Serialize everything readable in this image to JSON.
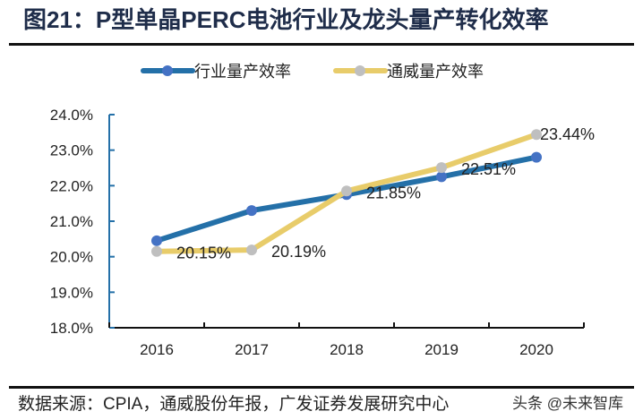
{
  "title": "图21：P型单晶PERC电池行业及龙头量产转化效率",
  "source": "数据来源：CPIA，通威股份年报，广发证券发展研究中心",
  "watermark": "头条 @未来智库",
  "chart_data": {
    "type": "line",
    "categories": [
      "2016",
      "2017",
      "2018",
      "2019",
      "2020"
    ],
    "ylim": [
      18,
      24
    ],
    "yticks": [
      "18.0%",
      "19.0%",
      "20.0%",
      "21.0%",
      "22.0%",
      "23.0%",
      "24.0%"
    ],
    "legend_position": "top",
    "grid": false,
    "series": [
      {
        "name": "行业量产效率",
        "values": [
          20.45,
          21.3,
          21.75,
          22.25,
          22.8
        ],
        "labels": [],
        "line_color": "#2470a8",
        "marker_color": "#4472c4"
      },
      {
        "name": "通威量产效率",
        "values": [
          20.15,
          20.19,
          21.85,
          22.51,
          23.44
        ],
        "labels": [
          "20.15%",
          "20.19%",
          "21.85%",
          "22.51%",
          "23.44%"
        ],
        "line_color": "#e8cc6a",
        "marker_color": "#bfbfbf"
      }
    ]
  }
}
